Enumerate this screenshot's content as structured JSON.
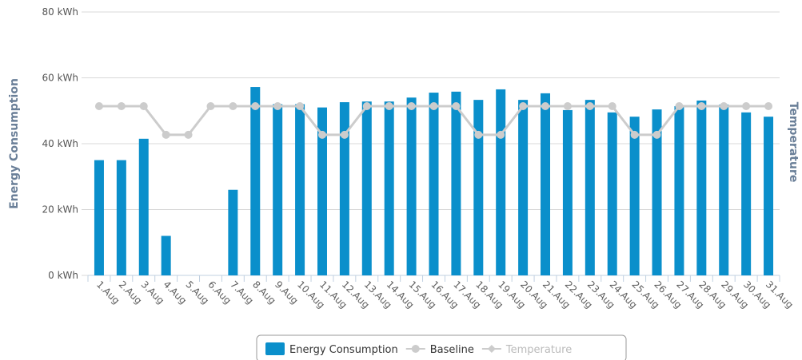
{
  "chart_data": {
    "type": "bar",
    "y_title": "Energy Consumption",
    "y2_title": "Temperature",
    "categories": [
      "1.Aug",
      "2.Aug",
      "3.Aug",
      "4.Aug",
      "5.Aug",
      "6.Aug",
      "7.Aug",
      "8.Aug",
      "9.Aug",
      "10.Aug",
      "11.Aug",
      "12.Aug",
      "13.Aug",
      "14.Aug",
      "15.Aug",
      "16.Aug",
      "17.Aug",
      "18.Aug",
      "19.Aug",
      "20.Aug",
      "21.Aug",
      "22.Aug",
      "23.Aug",
      "24.Aug",
      "25.Aug",
      "26.Aug",
      "27.Aug",
      "28.Aug",
      "29.Aug",
      "30.Aug",
      "31.Aug"
    ],
    "ylim": [
      0,
      80
    ],
    "yticks": [
      {
        "value": 0,
        "label": "0 kWh"
      },
      {
        "value": 20,
        "label": "20 kWh"
      },
      {
        "value": 40,
        "label": "40 kWh"
      },
      {
        "value": 60,
        "label": "60 kWh"
      },
      {
        "value": 80,
        "label": "80 kWh"
      }
    ],
    "grid": true,
    "legend": "bottom",
    "series": [
      {
        "name": "Energy Consumption",
        "type": "bar",
        "color": "#0a8fcb",
        "values": [
          35,
          35,
          41.5,
          12,
          0,
          0,
          26,
          57.2,
          52,
          52,
          51,
          52.6,
          52.8,
          52.8,
          54,
          55.5,
          55.8,
          53.3,
          56.5,
          53.3,
          55.3,
          50.2,
          53.3,
          49.5,
          48.2,
          50.4,
          51.4,
          53.1,
          51.9,
          49.5,
          48.2
        ]
      },
      {
        "name": "Baseline",
        "type": "line",
        "color": "#cccccc",
        "values": [
          51.4,
          51.4,
          51.4,
          42.7,
          42.7,
          51.4,
          51.4,
          51.4,
          51.4,
          51.4,
          42.7,
          42.7,
          51.4,
          51.4,
          51.4,
          51.4,
          51.4,
          42.7,
          42.7,
          51.4,
          51.4,
          51.4,
          51.4,
          51.4,
          42.7,
          42.7,
          51.4,
          51.4,
          51.4,
          51.4,
          51.4
        ]
      },
      {
        "name": "Temperature",
        "type": "line",
        "color": "#cccccc",
        "visible": false
      }
    ]
  }
}
